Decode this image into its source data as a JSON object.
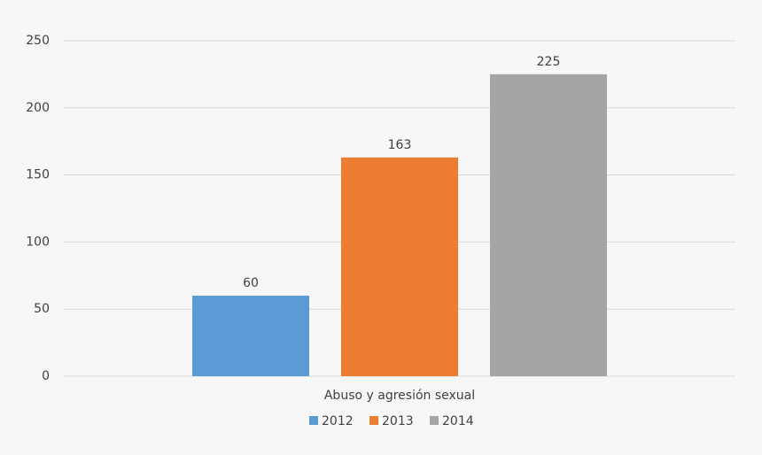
{
  "chart_data": {
    "type": "bar",
    "categories": [
      "Abuso y agresión sexual"
    ],
    "series": [
      {
        "name": "2012",
        "color": "#5b9bd5",
        "values": [
          60
        ]
      },
      {
        "name": "2013",
        "color": "#ed7d31",
        "values": [
          163
        ]
      },
      {
        "name": "2014",
        "color": "#a5a5a5",
        "values": [
          225
        ]
      }
    ],
    "ylim": [
      0,
      250
    ],
    "yticks": [
      0,
      50,
      100,
      150,
      200,
      250
    ],
    "grid": true,
    "legend": "bottom",
    "data_labels": true
  }
}
